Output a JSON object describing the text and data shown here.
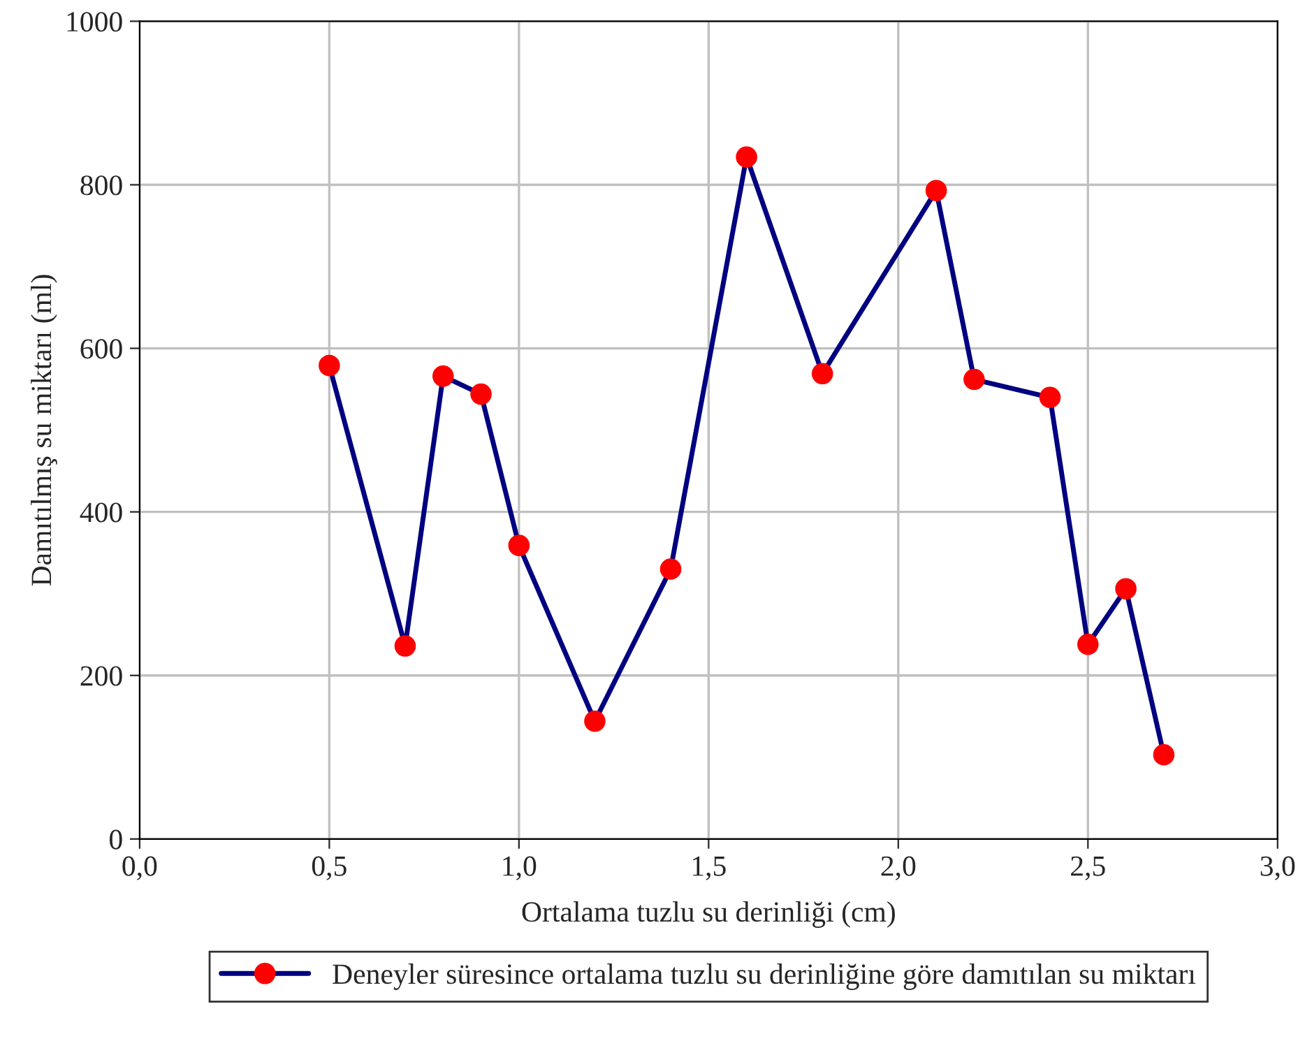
{
  "chart_data": {
    "type": "line",
    "xlabel": "Ortalama tuzlu su derinliği (cm)",
    "ylabel": "Damıtılmış su miktarı (ml)",
    "x": [
      0.5,
      0.7,
      0.8,
      0.9,
      1.0,
      1.2,
      1.4,
      1.6,
      1.8,
      2.1,
      2.2,
      2.4,
      2.5,
      2.6,
      2.7
    ],
    "series": [
      {
        "name": "Deneyler süresince ortalama tuzlu su derinliğine göre damıtılan su miktarı",
        "color": "#000080",
        "values": [
          579,
          236,
          566,
          544,
          359,
          144,
          330,
          834,
          569,
          793,
          562,
          540,
          238,
          306,
          103
        ]
      }
    ],
    "xlim": [
      0,
      3
    ],
    "xticks": [
      {
        "value": 0,
        "label": "0,0"
      },
      {
        "value": 0.5,
        "label": "0,5"
      },
      {
        "value": 1.0,
        "label": "1,0"
      },
      {
        "value": 1.5,
        "label": "1,5"
      },
      {
        "value": 2.0,
        "label": "2,0"
      },
      {
        "value": 2.5,
        "label": "2,5"
      },
      {
        "value": 3.0,
        "label": "3,0"
      }
    ],
    "ylim": [
      0,
      1000
    ],
    "yticks": [
      0,
      200,
      400,
      600,
      800,
      1000
    ],
    "grid": true,
    "legend": "bottom",
    "marker": "circle",
    "line_style": "solid"
  }
}
